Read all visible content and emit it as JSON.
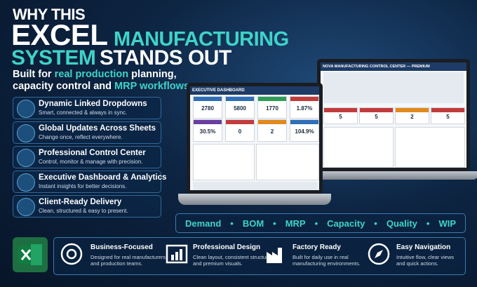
{
  "header": {
    "line1": "WHY THIS",
    "word1": "EXCEL",
    "word2": "MANUFACTURING",
    "word3": "SYSTEM",
    "word4": "STANDS OUT",
    "subtitle": [
      "Built for ",
      "real production",
      " planning,",
      "capacity control and ",
      "MRP workflows",
      "."
    ]
  },
  "features": [
    {
      "title": "Dynamic Linked Dropdowns",
      "desc": "Smart, connected & always in sync."
    },
    {
      "title": "Global Updates Across Sheets",
      "desc": "Change once, reflect everywhere."
    },
    {
      "title": "Professional Control Center",
      "desc": "Control, monitor & manage with precision."
    },
    {
      "title": "Executive Dashboard & Analytics",
      "desc": "Instant insights for better decisions."
    },
    {
      "title": "Client-Ready Delivery",
      "desc": "Clean, structured & easy to present."
    }
  ],
  "dashboard": {
    "title": "EXECUTIVE DASHBOARD",
    "kpis": [
      "2780",
      "5800",
      "1770",
      "1.87%",
      "30.5%",
      "0",
      "2",
      "104.9%"
    ]
  },
  "control_center": {
    "title": "NOVA MANUFACTURING CONTROL CENTER — PREMIUM",
    "kpis": [
      "5",
      "5",
      "2",
      "5"
    ]
  },
  "tags": [
    "Demand",
    "BOM",
    "MRP",
    "Capacity",
    "Quality",
    "WIP"
  ],
  "benefits": [
    {
      "title": "Business-Focused",
      "desc": [
        "Designed for real manufacturers",
        "and production teams."
      ]
    },
    {
      "title": "Professional Design",
      "desc": [
        "Clean layout, consistent structure",
        "and premium visuals."
      ]
    },
    {
      "title": "Factory Ready",
      "desc": [
        "Built for daily use in real",
        "manufacturing environments."
      ]
    },
    {
      "title": "Easy Navigation",
      "desc": [
        "Intuitive flow, clear views",
        "and quick actions."
      ]
    }
  ]
}
